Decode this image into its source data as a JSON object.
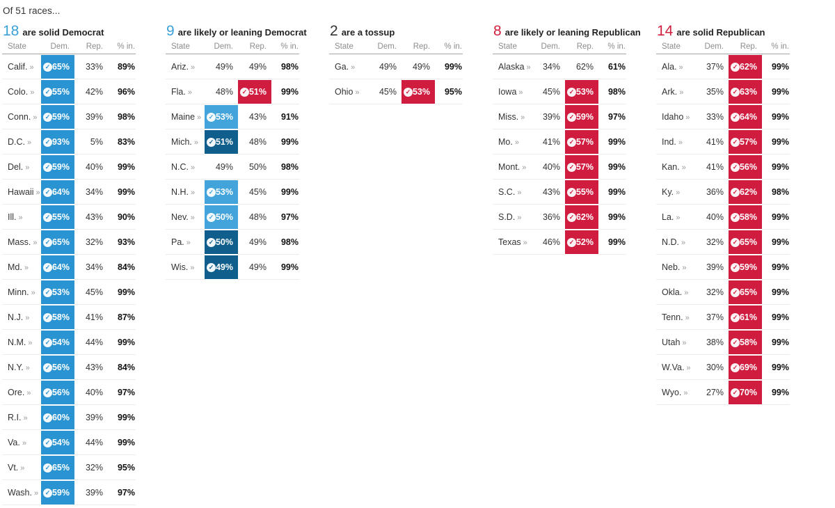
{
  "title": "Of 51 races...",
  "colors": {
    "dem_blue": "#2994d1",
    "dem_light_blue": "#42a4db",
    "dem_dark_blue": "#0f5e8c",
    "rep_red": "#d01c3f",
    "heading_dem_blue": "#3aa0d9",
    "heading_rep_red": "#d0203f",
    "heading_neutral": "#333333"
  },
  "icons": {
    "check": "✓",
    "chevron": "»"
  },
  "table_headers": {
    "state": "State",
    "dem": "Dem.",
    "rep": "Rep.",
    "pct_in": "% in."
  },
  "chart_data": [
    {
      "type": "table",
      "count": "18",
      "label": "are solid Democrat",
      "number_color": "heading_dem_blue",
      "columns": [
        "State",
        "Dem.",
        "Rep.",
        "% in."
      ],
      "rows": [
        {
          "state": "Calif.",
          "dem": "65%",
          "rep": "33%",
          "pct_in": "89%",
          "winner": "dem",
          "highlight": "dem_blue"
        },
        {
          "state": "Colo.",
          "dem": "55%",
          "rep": "42%",
          "pct_in": "96%",
          "winner": "dem",
          "highlight": "dem_blue"
        },
        {
          "state": "Conn.",
          "dem": "59%",
          "rep": "39%",
          "pct_in": "98%",
          "winner": "dem",
          "highlight": "dem_blue"
        },
        {
          "state": "D.C.",
          "dem": "93%",
          "rep": "5%",
          "pct_in": "83%",
          "winner": "dem",
          "highlight": "dem_blue"
        },
        {
          "state": "Del.",
          "dem": "59%",
          "rep": "40%",
          "pct_in": "99%",
          "winner": "dem",
          "highlight": "dem_blue"
        },
        {
          "state": "Hawaii",
          "dem": "64%",
          "rep": "34%",
          "pct_in": "99%",
          "winner": "dem",
          "highlight": "dem_blue"
        },
        {
          "state": "Ill.",
          "dem": "55%",
          "rep": "43%",
          "pct_in": "90%",
          "winner": "dem",
          "highlight": "dem_blue"
        },
        {
          "state": "Mass.",
          "dem": "65%",
          "rep": "32%",
          "pct_in": "93%",
          "winner": "dem",
          "highlight": "dem_blue"
        },
        {
          "state": "Md.",
          "dem": "64%",
          "rep": "34%",
          "pct_in": "84%",
          "winner": "dem",
          "highlight": "dem_blue"
        },
        {
          "state": "Minn.",
          "dem": "53%",
          "rep": "45%",
          "pct_in": "99%",
          "winner": "dem",
          "highlight": "dem_blue"
        },
        {
          "state": "N.J.",
          "dem": "58%",
          "rep": "41%",
          "pct_in": "87%",
          "winner": "dem",
          "highlight": "dem_blue"
        },
        {
          "state": "N.M.",
          "dem": "54%",
          "rep": "44%",
          "pct_in": "99%",
          "winner": "dem",
          "highlight": "dem_blue"
        },
        {
          "state": "N.Y.",
          "dem": "56%",
          "rep": "43%",
          "pct_in": "84%",
          "winner": "dem",
          "highlight": "dem_blue"
        },
        {
          "state": "Ore.",
          "dem": "56%",
          "rep": "40%",
          "pct_in": "97%",
          "winner": "dem",
          "highlight": "dem_blue"
        },
        {
          "state": "R.I.",
          "dem": "60%",
          "rep": "39%",
          "pct_in": "99%",
          "winner": "dem",
          "highlight": "dem_blue"
        },
        {
          "state": "Va.",
          "dem": "54%",
          "rep": "44%",
          "pct_in": "99%",
          "winner": "dem",
          "highlight": "dem_blue"
        },
        {
          "state": "Vt.",
          "dem": "65%",
          "rep": "32%",
          "pct_in": "95%",
          "winner": "dem",
          "highlight": "dem_blue"
        },
        {
          "state": "Wash.",
          "dem": "59%",
          "rep": "39%",
          "pct_in": "97%",
          "winner": "dem",
          "highlight": "dem_blue"
        }
      ]
    },
    {
      "type": "table",
      "count": "9",
      "label": "are likely or leaning Democrat",
      "number_color": "heading_dem_blue",
      "columns": [
        "State",
        "Dem.",
        "Rep.",
        "% in."
      ],
      "rows": [
        {
          "state": "Ariz.",
          "dem": "49%",
          "rep": "49%",
          "pct_in": "98%",
          "winner": "none",
          "highlight": null
        },
        {
          "state": "Fla.",
          "dem": "48%",
          "rep": "51%",
          "pct_in": "99%",
          "winner": "rep",
          "highlight": "rep_red"
        },
        {
          "state": "Maine",
          "dem": "53%",
          "rep": "43%",
          "pct_in": "91%",
          "winner": "dem",
          "highlight": "dem_light_blue"
        },
        {
          "state": "Mich.",
          "dem": "51%",
          "rep": "48%",
          "pct_in": "99%",
          "winner": "dem",
          "highlight": "dem_dark_blue"
        },
        {
          "state": "N.C.",
          "dem": "49%",
          "rep": "50%",
          "pct_in": "98%",
          "winner": "none",
          "highlight": null
        },
        {
          "state": "N.H.",
          "dem": "53%",
          "rep": "45%",
          "pct_in": "99%",
          "winner": "dem",
          "highlight": "dem_light_blue"
        },
        {
          "state": "Nev.",
          "dem": "50%",
          "rep": "48%",
          "pct_in": "97%",
          "winner": "dem",
          "highlight": "dem_light_blue"
        },
        {
          "state": "Pa.",
          "dem": "50%",
          "rep": "49%",
          "pct_in": "98%",
          "winner": "dem",
          "highlight": "dem_dark_blue"
        },
        {
          "state": "Wis.",
          "dem": "49%",
          "rep": "49%",
          "pct_in": "99%",
          "winner": "dem",
          "highlight": "dem_dark_blue"
        }
      ]
    },
    {
      "type": "table",
      "count": "2",
      "label": "are a tossup",
      "number_color": "heading_neutral",
      "columns": [
        "State",
        "Dem.",
        "Rep.",
        "% in."
      ],
      "rows": [
        {
          "state": "Ga.",
          "dem": "49%",
          "rep": "49%",
          "pct_in": "99%",
          "winner": "none",
          "highlight": null
        },
        {
          "state": "Ohio",
          "dem": "45%",
          "rep": "53%",
          "pct_in": "95%",
          "winner": "rep",
          "highlight": "rep_red"
        }
      ]
    },
    {
      "type": "table",
      "count": "8",
      "label": "are likely or leaning Republican",
      "number_color": "heading_rep_red",
      "columns": [
        "State",
        "Dem.",
        "Rep.",
        "% in."
      ],
      "rows": [
        {
          "state": "Alaska",
          "dem": "34%",
          "rep": "62%",
          "pct_in": "61%",
          "winner": "none",
          "highlight": null
        },
        {
          "state": "Iowa",
          "dem": "45%",
          "rep": "53%",
          "pct_in": "98%",
          "winner": "rep",
          "highlight": "rep_red"
        },
        {
          "state": "Miss.",
          "dem": "39%",
          "rep": "59%",
          "pct_in": "97%",
          "winner": "rep",
          "highlight": "rep_red"
        },
        {
          "state": "Mo.",
          "dem": "41%",
          "rep": "57%",
          "pct_in": "99%",
          "winner": "rep",
          "highlight": "rep_red"
        },
        {
          "state": "Mont.",
          "dem": "40%",
          "rep": "57%",
          "pct_in": "99%",
          "winner": "rep",
          "highlight": "rep_red"
        },
        {
          "state": "S.C.",
          "dem": "43%",
          "rep": "55%",
          "pct_in": "99%",
          "winner": "rep",
          "highlight": "rep_red"
        },
        {
          "state": "S.D.",
          "dem": "36%",
          "rep": "62%",
          "pct_in": "99%",
          "winner": "rep",
          "highlight": "rep_red"
        },
        {
          "state": "Texas",
          "dem": "46%",
          "rep": "52%",
          "pct_in": "99%",
          "winner": "rep",
          "highlight": "rep_red"
        }
      ]
    },
    {
      "type": "table",
      "count": "14",
      "label": "are solid Republican",
      "number_color": "heading_rep_red",
      "columns": [
        "State",
        "Dem.",
        "Rep.",
        "% in."
      ],
      "rows": [
        {
          "state": "Ala.",
          "dem": "37%",
          "rep": "62%",
          "pct_in": "99%",
          "winner": "rep",
          "highlight": "rep_red"
        },
        {
          "state": "Ark.",
          "dem": "35%",
          "rep": "63%",
          "pct_in": "99%",
          "winner": "rep",
          "highlight": "rep_red"
        },
        {
          "state": "Idaho",
          "dem": "33%",
          "rep": "64%",
          "pct_in": "99%",
          "winner": "rep",
          "highlight": "rep_red"
        },
        {
          "state": "Ind.",
          "dem": "41%",
          "rep": "57%",
          "pct_in": "99%",
          "winner": "rep",
          "highlight": "rep_red"
        },
        {
          "state": "Kan.",
          "dem": "41%",
          "rep": "56%",
          "pct_in": "99%",
          "winner": "rep",
          "highlight": "rep_red"
        },
        {
          "state": "Ky.",
          "dem": "36%",
          "rep": "62%",
          "pct_in": "98%",
          "winner": "rep",
          "highlight": "rep_red"
        },
        {
          "state": "La.",
          "dem": "40%",
          "rep": "58%",
          "pct_in": "99%",
          "winner": "rep",
          "highlight": "rep_red"
        },
        {
          "state": "N.D.",
          "dem": "32%",
          "rep": "65%",
          "pct_in": "99%",
          "winner": "rep",
          "highlight": "rep_red"
        },
        {
          "state": "Neb.",
          "dem": "39%",
          "rep": "59%",
          "pct_in": "99%",
          "winner": "rep",
          "highlight": "rep_red"
        },
        {
          "state": "Okla.",
          "dem": "32%",
          "rep": "65%",
          "pct_in": "99%",
          "winner": "rep",
          "highlight": "rep_red"
        },
        {
          "state": "Tenn.",
          "dem": "37%",
          "rep": "61%",
          "pct_in": "99%",
          "winner": "rep",
          "highlight": "rep_red"
        },
        {
          "state": "Utah",
          "dem": "38%",
          "rep": "58%",
          "pct_in": "99%",
          "winner": "rep",
          "highlight": "rep_red"
        },
        {
          "state": "W.Va.",
          "dem": "30%",
          "rep": "69%",
          "pct_in": "99%",
          "winner": "rep",
          "highlight": "rep_red"
        },
        {
          "state": "Wyo.",
          "dem": "27%",
          "rep": "70%",
          "pct_in": "99%",
          "winner": "rep",
          "highlight": "rep_red"
        }
      ]
    }
  ]
}
